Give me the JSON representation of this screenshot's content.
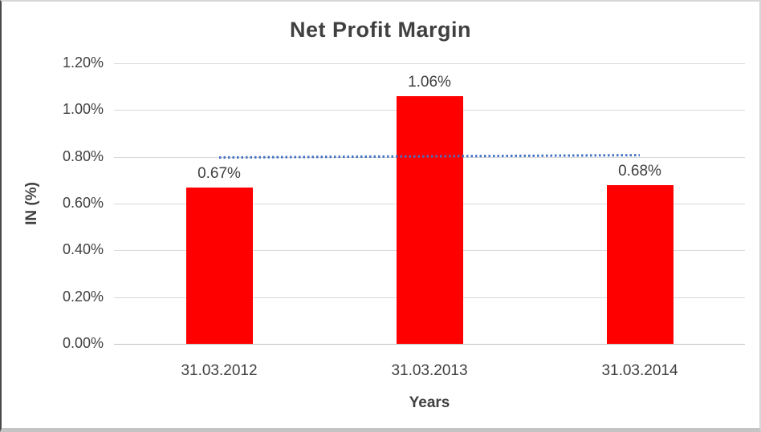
{
  "chart_data": {
    "type": "bar",
    "title": "Net Profit Margin",
    "xlabel": "Years",
    "ylabel": "IN (%)",
    "categories": [
      "31.03.2012",
      "31.03.2013",
      "31.03.2014"
    ],
    "values": [
      0.67,
      1.06,
      0.68
    ],
    "data_labels": [
      "0.67%",
      "1.06%",
      "0.68%"
    ],
    "ylim": [
      0,
      1.2
    ],
    "ytick_step": 0.2,
    "ytick_labels": [
      "0.00%",
      "0.20%",
      "0.40%",
      "0.60%",
      "0.80%",
      "1.00%",
      "1.20%"
    ],
    "grid": true,
    "legend": false,
    "trendline": {
      "type": "linear",
      "style": "dotted",
      "endpoints": [
        0.7983,
        0.8083
      ]
    },
    "colors": {
      "bar": "#ff0000",
      "trend": "#4472c4",
      "grid": "#d9d9d9",
      "axis": "#c0c0c0",
      "text": "#404040",
      "background": "#ffffff"
    }
  }
}
